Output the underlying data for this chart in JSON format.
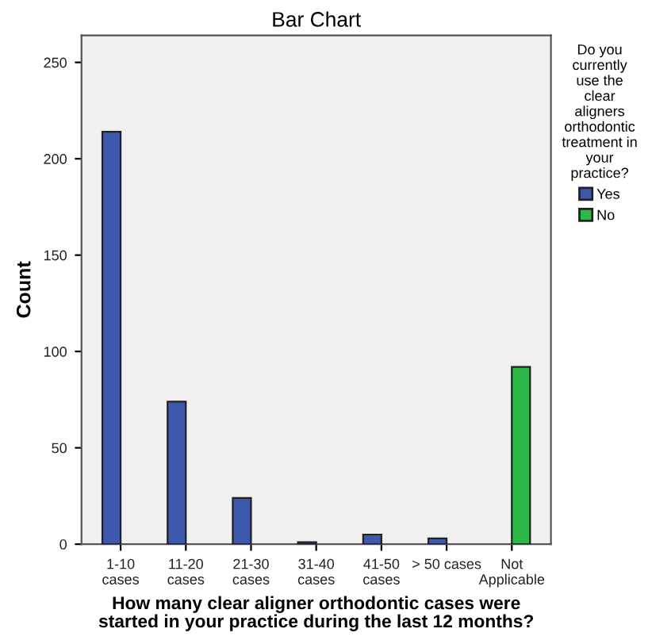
{
  "chart_data": {
    "type": "bar",
    "title": "Bar Chart",
    "xlabel": "How many clear aligner orthodontic cases were\nstarted in your practice during the last 12 months?",
    "ylabel": "Count",
    "legend_title": "Do you\ncurrently\nuse the\nclear\naligners\northodontic\ntreatment in\nyour\npractice?",
    "categories": [
      "1-10\ncases",
      "11-20\ncases",
      "21-30\ncases",
      "31-40\ncases",
      "41-50\ncases",
      "> 50 cases",
      "Not\nApplicable"
    ],
    "series": [
      {
        "name": "Yes",
        "color": "#3e58ac",
        "values": [
          214,
          74,
          24,
          1,
          5,
          3,
          null
        ]
      },
      {
        "name": "No",
        "color": "#2eb848",
        "values": [
          null,
          null,
          null,
          null,
          null,
          null,
          92
        ]
      }
    ],
    "ylim": [
      0,
      264
    ],
    "yticks": [
      0,
      50,
      100,
      150,
      200,
      250
    ],
    "legend": "right",
    "grid": false
  }
}
